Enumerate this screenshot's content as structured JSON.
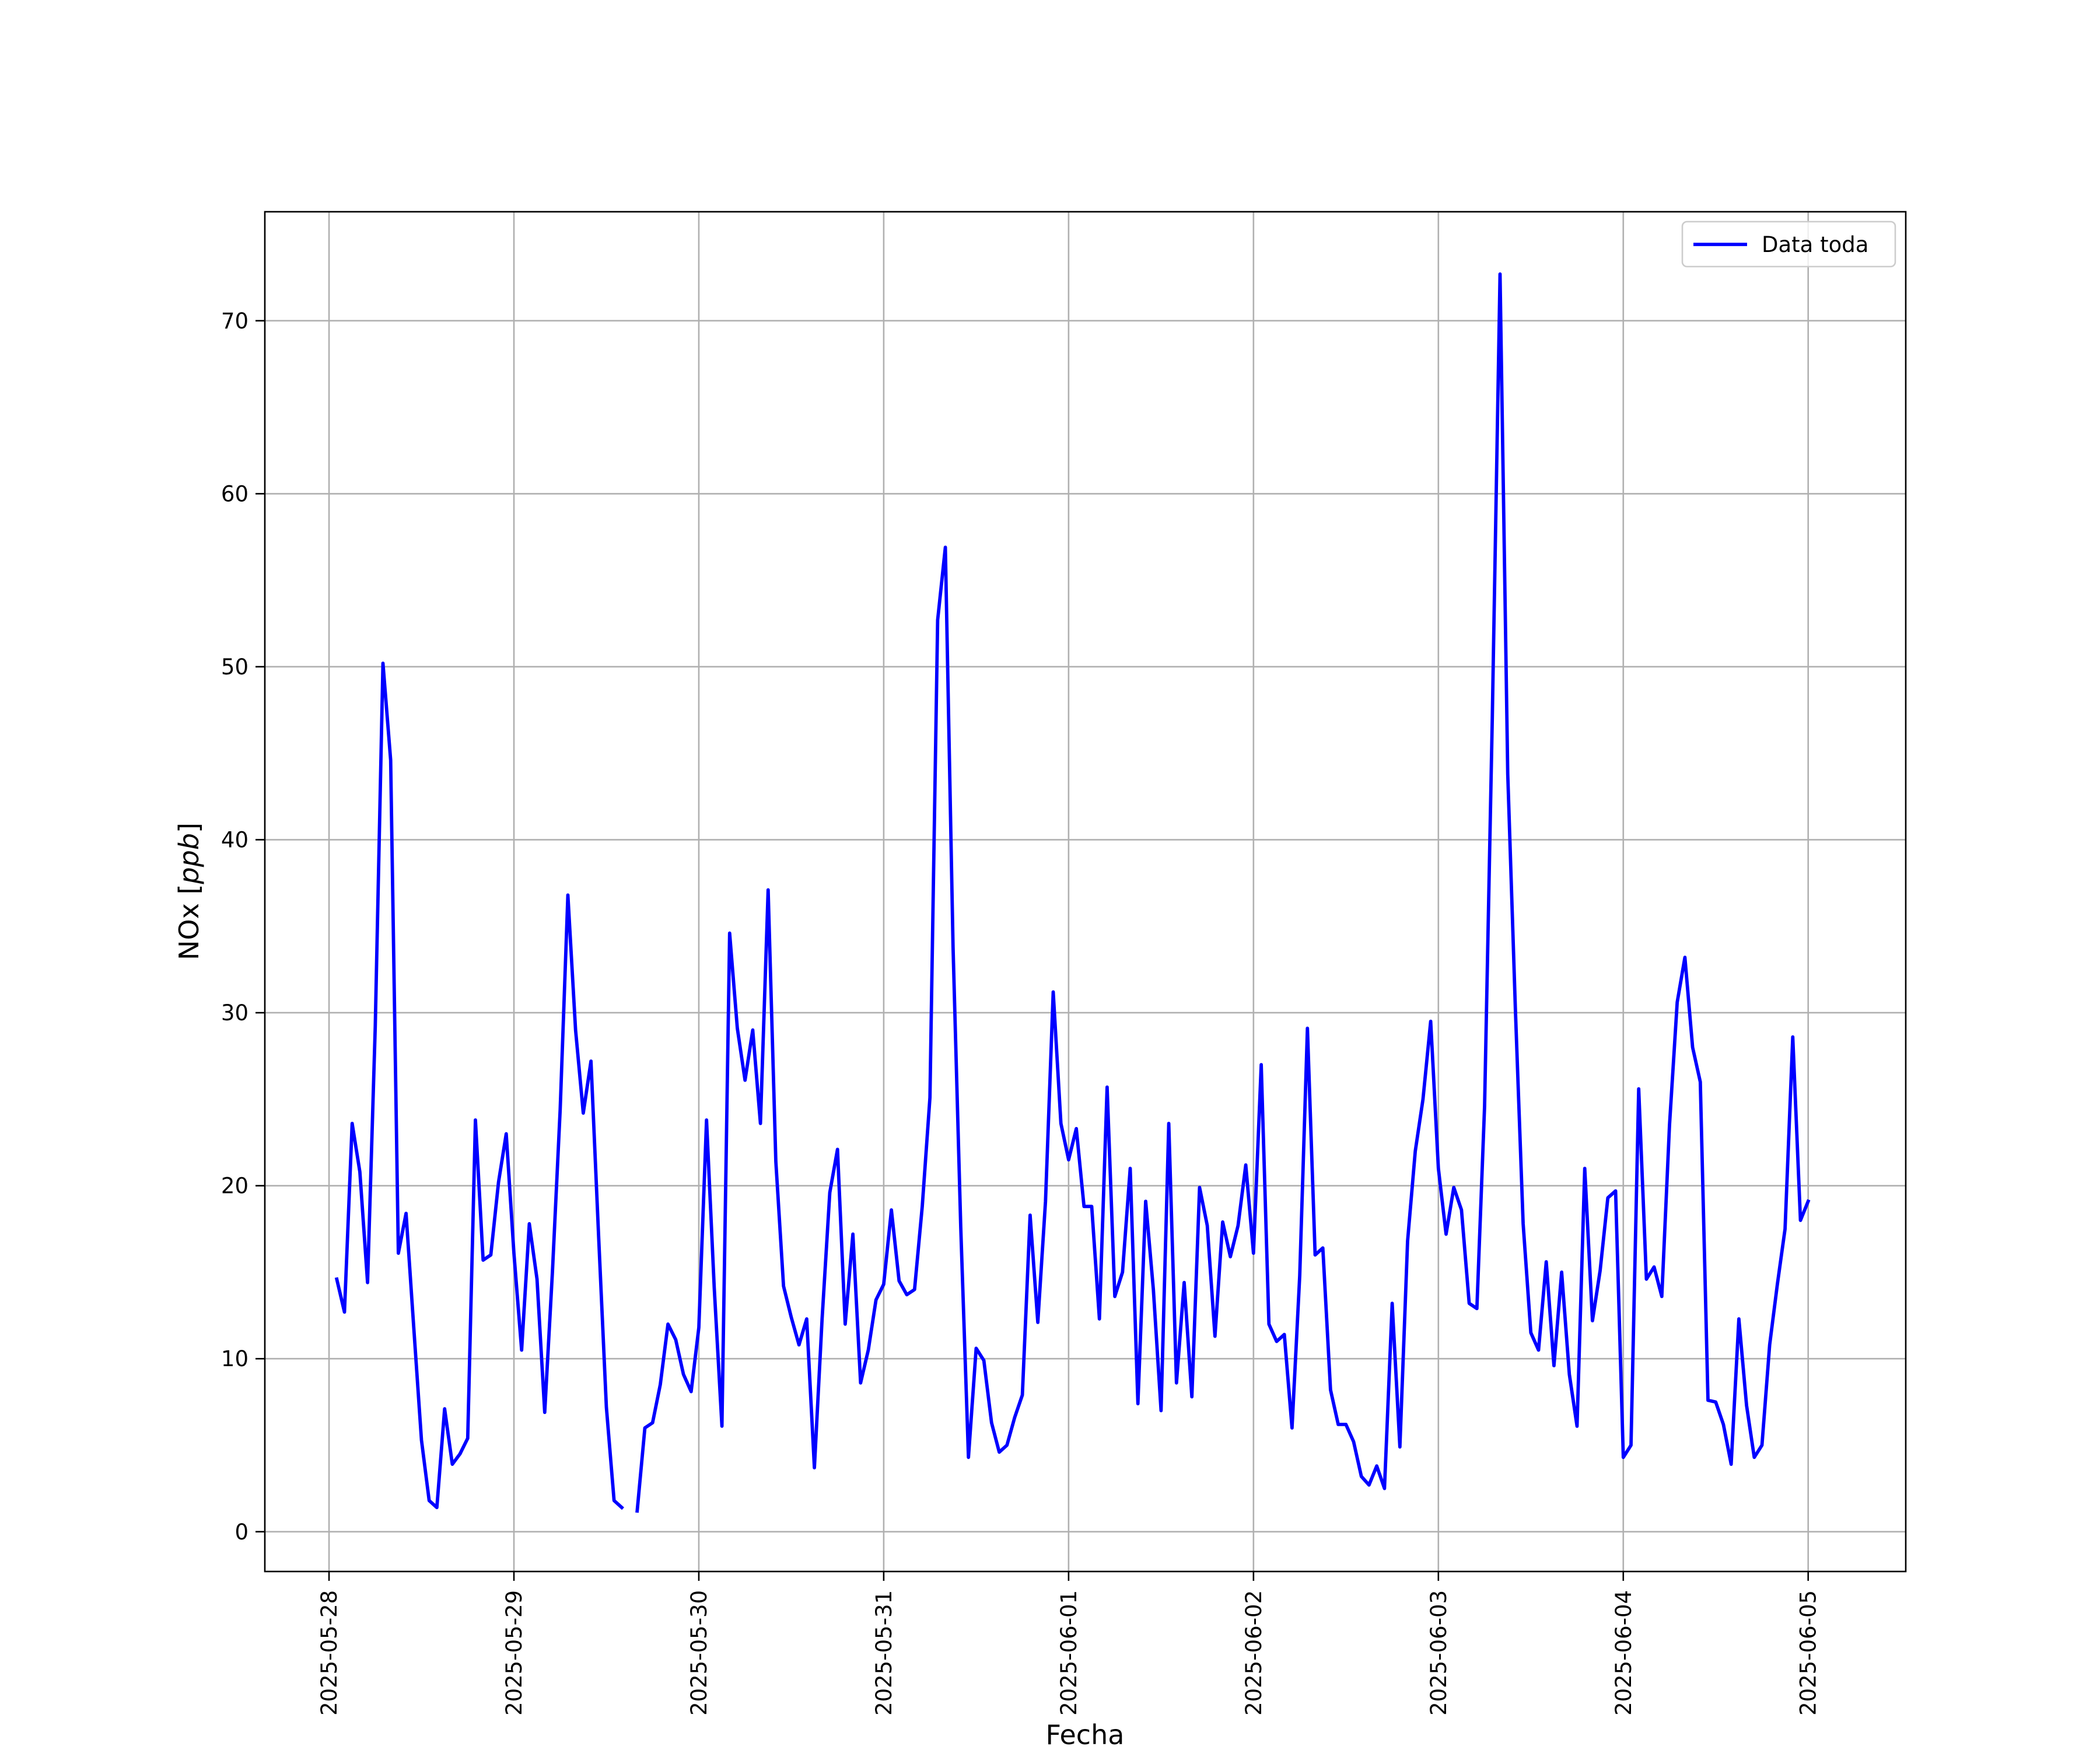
{
  "chart_data": {
    "type": "line",
    "xlabel": "Fecha",
    "ylabel_text": "NOx [",
    "ylabel_unit": "ppb",
    "ylabel_close": "]",
    "ylim": [
      -2.3,
      76.3
    ],
    "xlim": [
      "2025-05-27 15:40",
      "2025-06-05 12:40"
    ],
    "x_ticks": [
      "2025-05-28",
      "2025-05-29",
      "2025-05-30",
      "2025-05-31",
      "2025-06-01",
      "2025-06-02",
      "2025-06-03",
      "2025-06-04",
      "2025-06-05"
    ],
    "y_ticks": [
      0,
      10,
      20,
      30,
      40,
      50,
      60,
      70
    ],
    "y_tick_labels": [
      "0",
      "10",
      "20",
      "30",
      "40",
      "50",
      "60",
      "70"
    ],
    "grid": true,
    "legend_position": "top-right",
    "series": [
      {
        "name": "Data toda",
        "color": "#0000ff",
        "points": [
          [
            "2025-05-28 01:00",
            14.6
          ],
          [
            "2025-05-28 02:00",
            12.7
          ],
          [
            "2025-05-28 03:00",
            23.6
          ],
          [
            "2025-05-28 04:00",
            20.8
          ],
          [
            "2025-05-28 05:00",
            14.4
          ],
          [
            "2025-05-28 06:00",
            29.2
          ],
          [
            "2025-05-28 07:00",
            50.2
          ],
          [
            "2025-05-28 08:00",
            44.6
          ],
          [
            "2025-05-28 09:00",
            16.1
          ],
          [
            "2025-05-28 10:00",
            18.4
          ],
          [
            "2025-05-28 11:00",
            11.8
          ],
          [
            "2025-05-28 12:00",
            5.3
          ],
          [
            "2025-05-28 13:00",
            1.8
          ],
          [
            "2025-05-28 14:00",
            1.4
          ],
          [
            "2025-05-28 15:00",
            7.1
          ],
          [
            "2025-05-28 16:00",
            3.9
          ],
          [
            "2025-05-28 17:00",
            4.5
          ],
          [
            "2025-05-28 18:00",
            5.4
          ],
          [
            "2025-05-28 19:00",
            23.8
          ],
          [
            "2025-05-28 20:00",
            15.7
          ],
          [
            "2025-05-28 21:00",
            16.0
          ],
          [
            "2025-05-28 22:00",
            20.2
          ],
          [
            "2025-05-28 23:00",
            23.0
          ],
          [
            "2025-05-29 00:00",
            16.1
          ],
          [
            "2025-05-29 01:00",
            10.5
          ],
          [
            "2025-05-29 02:00",
            17.8
          ],
          [
            "2025-05-29 03:00",
            14.6
          ],
          [
            "2025-05-29 04:00",
            6.9
          ],
          [
            "2025-05-29 05:00",
            15.0
          ],
          [
            "2025-05-29 06:00",
            24.4
          ],
          [
            "2025-05-29 07:00",
            36.8
          ],
          [
            "2025-05-29 08:00",
            29.0
          ],
          [
            "2025-05-29 09:00",
            24.2
          ],
          [
            "2025-05-29 10:00",
            27.2
          ],
          [
            "2025-05-29 11:00",
            17.0
          ],
          [
            "2025-05-29 12:00",
            7.2
          ],
          [
            "2025-05-29 13:00",
            1.8
          ],
          [
            "2025-05-29 14:00",
            1.4
          ],
          null,
          [
            "2025-05-29 16:00",
            1.2
          ],
          [
            "2025-05-29 17:00",
            6.0
          ],
          [
            "2025-05-29 18:00",
            6.3
          ],
          [
            "2025-05-29 19:00",
            8.5
          ],
          [
            "2025-05-29 20:00",
            12.0
          ],
          [
            "2025-05-29 21:00",
            11.1
          ],
          [
            "2025-05-29 22:00",
            9.1
          ],
          [
            "2025-05-29 23:00",
            8.1
          ],
          [
            "2025-05-30 00:00",
            11.8
          ],
          [
            "2025-05-30 01:00",
            23.8
          ],
          [
            "2025-05-30 02:00",
            14.1
          ],
          [
            "2025-05-30 03:00",
            6.1
          ],
          [
            "2025-05-30 04:00",
            34.6
          ],
          [
            "2025-05-30 05:00",
            29.1
          ],
          [
            "2025-05-30 06:00",
            26.1
          ],
          [
            "2025-05-30 07:00",
            29.0
          ],
          [
            "2025-05-30 08:00",
            23.6
          ],
          [
            "2025-05-30 09:00",
            37.1
          ],
          [
            "2025-05-30 10:00",
            21.4
          ],
          [
            "2025-05-30 11:00",
            14.2
          ],
          [
            "2025-05-30 12:00",
            12.4
          ],
          [
            "2025-05-30 13:00",
            10.8
          ],
          [
            "2025-05-30 14:00",
            12.3
          ],
          [
            "2025-05-30 15:00",
            3.7
          ],
          [
            "2025-05-30 16:00",
            12.3
          ],
          [
            "2025-05-30 17:00",
            19.6
          ],
          [
            "2025-05-30 18:00",
            22.1
          ],
          [
            "2025-05-30 19:00",
            12.0
          ],
          [
            "2025-05-30 20:00",
            17.2
          ],
          [
            "2025-05-30 21:00",
            8.6
          ],
          [
            "2025-05-30 22:00",
            10.5
          ],
          [
            "2025-05-30 23:00",
            13.4
          ],
          [
            "2025-05-31 00:00",
            14.3
          ],
          [
            "2025-05-31 01:00",
            18.6
          ],
          [
            "2025-05-31 02:00",
            14.5
          ],
          [
            "2025-05-31 03:00",
            13.7
          ],
          [
            "2025-05-31 04:00",
            14.0
          ],
          [
            "2025-05-31 05:00",
            18.8
          ],
          [
            "2025-05-31 06:00",
            25.1
          ],
          [
            "2025-05-31 07:00",
            52.7
          ],
          [
            "2025-05-31 08:00",
            56.9
          ],
          [
            "2025-05-31 09:00",
            33.8
          ],
          [
            "2025-05-31 10:00",
            17.6
          ],
          [
            "2025-05-31 11:00",
            4.3
          ],
          [
            "2025-05-31 12:00",
            10.6
          ],
          [
            "2025-05-31 13:00",
            9.9
          ],
          [
            "2025-05-31 14:00",
            6.3
          ],
          [
            "2025-05-31 15:00",
            4.6
          ],
          [
            "2025-05-31 16:00",
            5.0
          ],
          [
            "2025-05-31 17:00",
            6.6
          ],
          [
            "2025-05-31 18:00",
            7.9
          ],
          [
            "2025-05-31 19:00",
            18.3
          ],
          [
            "2025-05-31 20:00",
            12.1
          ],
          [
            "2025-05-31 21:00",
            19.1
          ],
          [
            "2025-05-31 22:00",
            31.2
          ],
          [
            "2025-05-31 23:00",
            23.6
          ],
          [
            "2025-06-01 00:00",
            21.5
          ],
          [
            "2025-06-01 01:00",
            23.3
          ],
          [
            "2025-06-01 02:00",
            18.8
          ],
          [
            "2025-06-01 03:00",
            18.8
          ],
          [
            "2025-06-01 04:00",
            12.3
          ],
          [
            "2025-06-01 05:00",
            25.7
          ],
          [
            "2025-06-01 06:00",
            13.6
          ],
          [
            "2025-06-01 07:00",
            15.0
          ],
          [
            "2025-06-01 08:00",
            21.0
          ],
          [
            "2025-06-01 09:00",
            7.4
          ],
          [
            "2025-06-01 10:00",
            19.1
          ],
          [
            "2025-06-01 11:00",
            14.0
          ],
          [
            "2025-06-01 12:00",
            7.0
          ],
          [
            "2025-06-01 13:00",
            23.6
          ],
          [
            "2025-06-01 14:00",
            8.6
          ],
          [
            "2025-06-01 15:00",
            14.4
          ],
          [
            "2025-06-01 16:00",
            7.8
          ],
          [
            "2025-06-01 17:00",
            19.9
          ],
          [
            "2025-06-01 18:00",
            17.7
          ],
          [
            "2025-06-01 19:00",
            11.3
          ],
          [
            "2025-06-01 20:00",
            17.9
          ],
          [
            "2025-06-01 21:00",
            15.9
          ],
          [
            "2025-06-01 22:00",
            17.7
          ],
          [
            "2025-06-01 23:00",
            21.2
          ],
          [
            "2025-06-02 00:00",
            16.1
          ],
          [
            "2025-06-02 01:00",
            27.0
          ],
          [
            "2025-06-02 02:00",
            12.0
          ],
          [
            "2025-06-02 03:00",
            11.0
          ],
          [
            "2025-06-02 04:00",
            11.4
          ],
          [
            "2025-06-02 05:00",
            6.0
          ],
          [
            "2025-06-02 06:00",
            14.8
          ],
          [
            "2025-06-02 07:00",
            29.1
          ],
          [
            "2025-06-02 08:00",
            16.0
          ],
          [
            "2025-06-02 09:00",
            16.4
          ],
          [
            "2025-06-02 10:00",
            8.2
          ],
          [
            "2025-06-02 11:00",
            6.2
          ],
          [
            "2025-06-02 12:00",
            6.2
          ],
          [
            "2025-06-02 13:00",
            5.2
          ],
          [
            "2025-06-02 14:00",
            3.2
          ],
          [
            "2025-06-02 15:00",
            2.7
          ],
          [
            "2025-06-02 16:00",
            3.8
          ],
          [
            "2025-06-02 17:00",
            2.5
          ],
          [
            "2025-06-02 18:00",
            13.2
          ],
          [
            "2025-06-02 19:00",
            4.9
          ],
          [
            "2025-06-02 20:00",
            16.8
          ],
          [
            "2025-06-02 21:00",
            22.0
          ],
          [
            "2025-06-02 22:00",
            25.0
          ],
          [
            "2025-06-02 23:00",
            29.5
          ],
          [
            "2025-06-03 00:00",
            21.0
          ],
          [
            "2025-06-03 01:00",
            17.2
          ],
          [
            "2025-06-03 02:00",
            19.9
          ],
          [
            "2025-06-03 03:00",
            18.6
          ],
          [
            "2025-06-03 04:00",
            13.2
          ],
          [
            "2025-06-03 05:00",
            12.9
          ],
          [
            "2025-06-03 06:00",
            24.6
          ],
          [
            "2025-06-03 07:00",
            47.0
          ],
          [
            "2025-06-03 08:00",
            72.7
          ],
          [
            "2025-06-03 09:00",
            43.8
          ],
          [
            "2025-06-03 10:00",
            30.1
          ],
          [
            "2025-06-03 11:00",
            17.8
          ],
          [
            "2025-06-03 12:00",
            11.5
          ],
          [
            "2025-06-03 13:00",
            10.5
          ],
          [
            "2025-06-03 14:00",
            15.6
          ],
          [
            "2025-06-03 15:00",
            9.6
          ],
          [
            "2025-06-03 16:00",
            15.0
          ],
          [
            "2025-06-03 17:00",
            9.1
          ],
          [
            "2025-06-03 18:00",
            6.1
          ],
          [
            "2025-06-03 19:00",
            21.0
          ],
          [
            "2025-06-03 20:00",
            12.2
          ],
          [
            "2025-06-03 21:00",
            15.1
          ],
          [
            "2025-06-03 22:00",
            19.3
          ],
          [
            "2025-06-03 23:00",
            19.7
          ],
          [
            "2025-06-04 00:00",
            4.3
          ],
          [
            "2025-06-04 01:00",
            5.0
          ],
          [
            "2025-06-04 02:00",
            25.6
          ],
          [
            "2025-06-04 03:00",
            14.6
          ],
          [
            "2025-06-04 04:00",
            15.3
          ],
          [
            "2025-06-04 05:00",
            13.6
          ],
          [
            "2025-06-04 06:00",
            23.5
          ],
          [
            "2025-06-04 07:00",
            30.6
          ],
          [
            "2025-06-04 08:00",
            33.2
          ],
          [
            "2025-06-04 09:00",
            28.0
          ],
          [
            "2025-06-04 10:00",
            26.0
          ],
          [
            "2025-06-04 11:00",
            7.6
          ],
          [
            "2025-06-04 12:00",
            7.5
          ],
          [
            "2025-06-04 13:00",
            6.2
          ],
          [
            "2025-06-04 14:00",
            3.9
          ],
          [
            "2025-06-04 15:00",
            12.3
          ],
          [
            "2025-06-04 16:00",
            7.3
          ],
          [
            "2025-06-04 17:00",
            4.3
          ],
          [
            "2025-06-04 18:00",
            5.0
          ],
          [
            "2025-06-04 19:00",
            10.8
          ],
          [
            "2025-06-04 20:00",
            14.3
          ],
          [
            "2025-06-04 21:00",
            17.5
          ],
          [
            "2025-06-04 22:00",
            28.6
          ],
          [
            "2025-06-04 23:00",
            18.0
          ],
          [
            "2025-06-05 00:00",
            19.1
          ]
        ]
      }
    ]
  }
}
